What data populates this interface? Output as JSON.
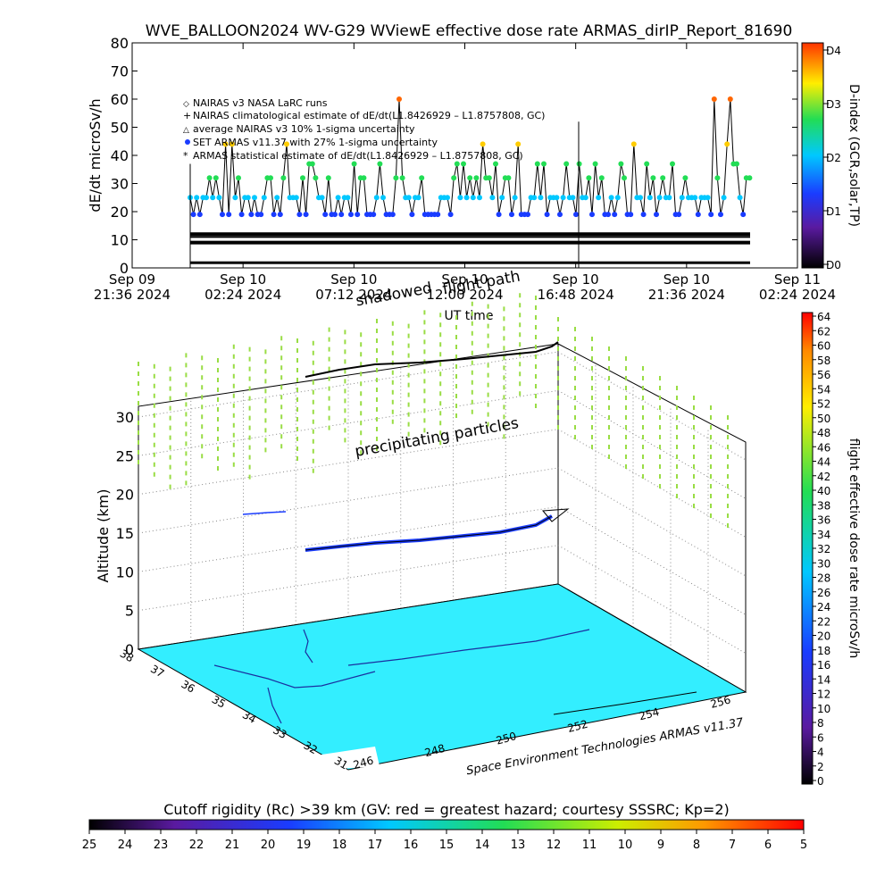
{
  "top_chart": {
    "title": "WVE_BALLOON2024 WV-G29 WViewE effective dose rate ARMAS_dirIP_Report_81690",
    "ylabel": "dE/dt microSv/h",
    "xlabel": "UT time",
    "right_label": "D-index (GCR,solar,TP)",
    "legend": [
      "NAIRAS v3 NASA LaRC runs",
      "NAIRAS climatological estimate of dE/dt(L1.8426929 – L1.8757808, GC)",
      "average NAIRAS v3 10% 1-sigma uncertainty",
      "SET ARMAS v11.37 with 27% 1-sigma uncertainty",
      "ARMAS statistical estimate of dE/dt(L1.8426929 – L1.8757808, GC)"
    ],
    "overlay_labels": [
      "flight path",
      "shadowed"
    ]
  },
  "chart_data": [
    {
      "type": "scatter",
      "title": "WVE_BALLOON2024 WV-G29 WViewE effective dose rate ARMAS_dirIP_Report_81690",
      "xlabel": "UT time",
      "ylabel": "dE/dt microSv/h",
      "ylim": [
        0,
        80
      ],
      "yticks": [
        "0",
        "10",
        "20",
        "30",
        "40",
        "50",
        "60",
        "70",
        "80"
      ],
      "xtick_labels": [
        [
          "Sep 09",
          "21:36 2024"
        ],
        [
          "Sep 10",
          "02:24 2024"
        ],
        [
          "Sep 10",
          "07:12 2024"
        ],
        [
          "Sep 10",
          "12:00 2024"
        ],
        [
          "Sep 10",
          "16:48 2024"
        ],
        [
          "Sep 10",
          "21:36 2024"
        ],
        [
          "Sep 11",
          "02:24 2024"
        ]
      ],
      "right_axis": {
        "label": "D-index (GCR,solar,TP)",
        "ticks": [
          "D0",
          "D1",
          "D2",
          "D3",
          "D4"
        ]
      },
      "series": [
        {
          "name": "SET ARMAS v11.37 with 27% 1-sigma uncertainty",
          "levels": [
            19,
            25,
            32,
            37,
            44,
            52,
            60
          ]
        },
        {
          "name": "ARMAS statistical estimate of dE/dt(L1.8426929 – L1.8757808, GC)",
          "values": [
            9,
            12
          ]
        },
        {
          "name": "NAIRAS climatological estimate of dE/dt(L1.8426929 – L1.8757808, GC)",
          "values": [
            11
          ]
        }
      ],
      "grid": false
    },
    {
      "type": "scatter",
      "subtype": "3d-trajectory",
      "zlabel": "Altitude (km)",
      "zticks": [
        "0",
        "5",
        "10",
        "15",
        "20",
        "25",
        "30"
      ],
      "lat_ticks": [
        "38",
        "37",
        "36",
        "35",
        "34",
        "33",
        "32",
        "31"
      ],
      "lon_ticks": [
        "246",
        "248",
        "250",
        "252",
        "254",
        "256"
      ],
      "annotation": "precipitating particles",
      "credit": "Space Environment Technologies ARMAS v11.37",
      "flight_altitude_km": [
        13,
        18
      ],
      "colorbar": {
        "label": "flight effective dose rate microSv/h",
        "ticks": [
          "0",
          "2",
          "4",
          "6",
          "8",
          "10",
          "12",
          "14",
          "16",
          "18",
          "20",
          "22",
          "24",
          "26",
          "28",
          "30",
          "32",
          "34",
          "36",
          "38",
          "40",
          "42",
          "44",
          "46",
          "48",
          "50",
          "52",
          "54",
          "56",
          "58",
          "60",
          "62",
          "64"
        ]
      }
    },
    {
      "type": "colorbar",
      "title": "Cutoff rigidity (Rc) >39 km (GV: red = greatest hazard; courtesy SSSRC; Kp=2)",
      "ticks": [
        "25",
        "24",
        "23",
        "22",
        "21",
        "20",
        "19",
        "18",
        "17",
        "16",
        "15",
        "14",
        "13",
        "12",
        "11",
        "10",
        "9",
        "8",
        "7",
        "6",
        "5"
      ]
    }
  ],
  "colors": {
    "ground": "#33eeff",
    "trace": "#000000",
    "fill_blue": "#3399ff",
    "dash_green": "#99dd44"
  }
}
